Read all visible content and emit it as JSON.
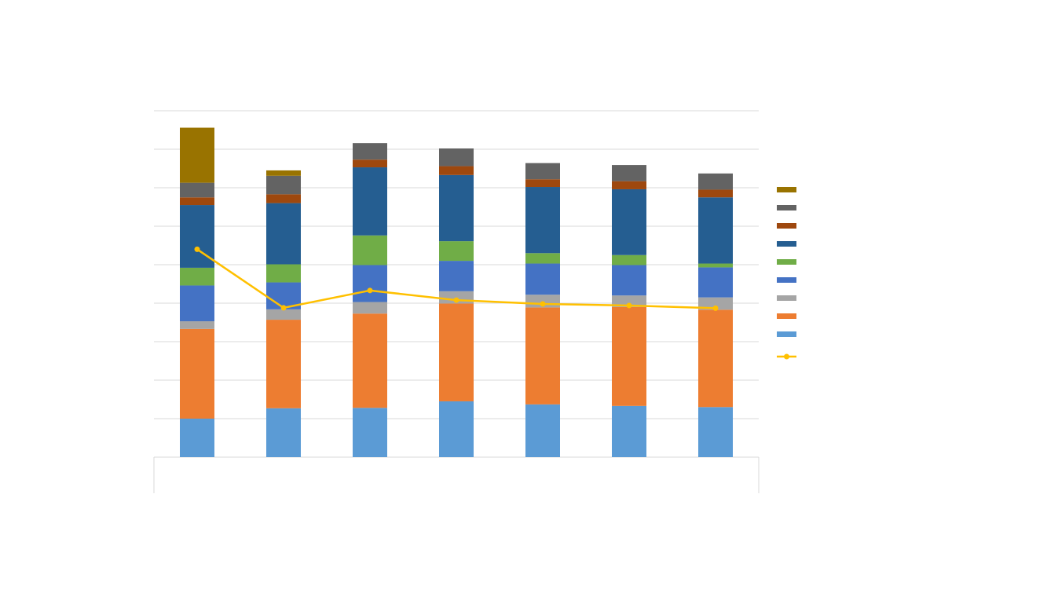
{
  "chart_data": {
    "type": "bar",
    "stacked": true,
    "title": "",
    "xlabel": "",
    "ylabel": "",
    "categories": [
      "",
      "",
      "",
      "",
      "",
      "",
      ""
    ],
    "ylim": [
      0,
      9
    ],
    "grid": true,
    "legend_position": "right",
    "series": [
      {
        "type": "bar",
        "color": "#5B9BD5",
        "values": [
          1.0,
          1.27,
          1.28,
          1.45,
          1.37,
          1.33,
          1.3
        ]
      },
      {
        "type": "bar",
        "color": "#ED7D31",
        "values": [
          2.33,
          2.3,
          2.45,
          2.54,
          2.52,
          2.57,
          2.53
        ]
      },
      {
        "type": "bar",
        "color": "#A5A5A5",
        "values": [
          0.2,
          0.27,
          0.3,
          0.32,
          0.33,
          0.3,
          0.32
        ]
      },
      {
        "type": "bar",
        "color": "#4472C4",
        "values": [
          0.93,
          0.7,
          0.96,
          0.79,
          0.81,
          0.79,
          0.78
        ]
      },
      {
        "type": "bar",
        "color": "#70AD47",
        "values": [
          0.46,
          0.47,
          0.77,
          0.51,
          0.27,
          0.26,
          0.1
        ]
      },
      {
        "type": "bar",
        "color": "#255E91",
        "values": [
          1.63,
          1.59,
          1.77,
          1.72,
          1.72,
          1.71,
          1.72
        ]
      },
      {
        "type": "bar",
        "color": "#9E480E",
        "values": [
          0.2,
          0.23,
          0.2,
          0.23,
          0.2,
          0.21,
          0.2
        ]
      },
      {
        "type": "bar",
        "color": "#636363",
        "values": [
          0.38,
          0.48,
          0.43,
          0.46,
          0.42,
          0.42,
          0.42
        ]
      },
      {
        "type": "bar",
        "color": "#997300",
        "values": [
          1.43,
          0.14,
          0,
          0,
          0,
          0,
          0
        ]
      },
      {
        "type": "line",
        "color": "#FFC000",
        "values": [
          5.4,
          3.88,
          4.33,
          4.08,
          3.98,
          3.94,
          3.87
        ]
      }
    ]
  }
}
